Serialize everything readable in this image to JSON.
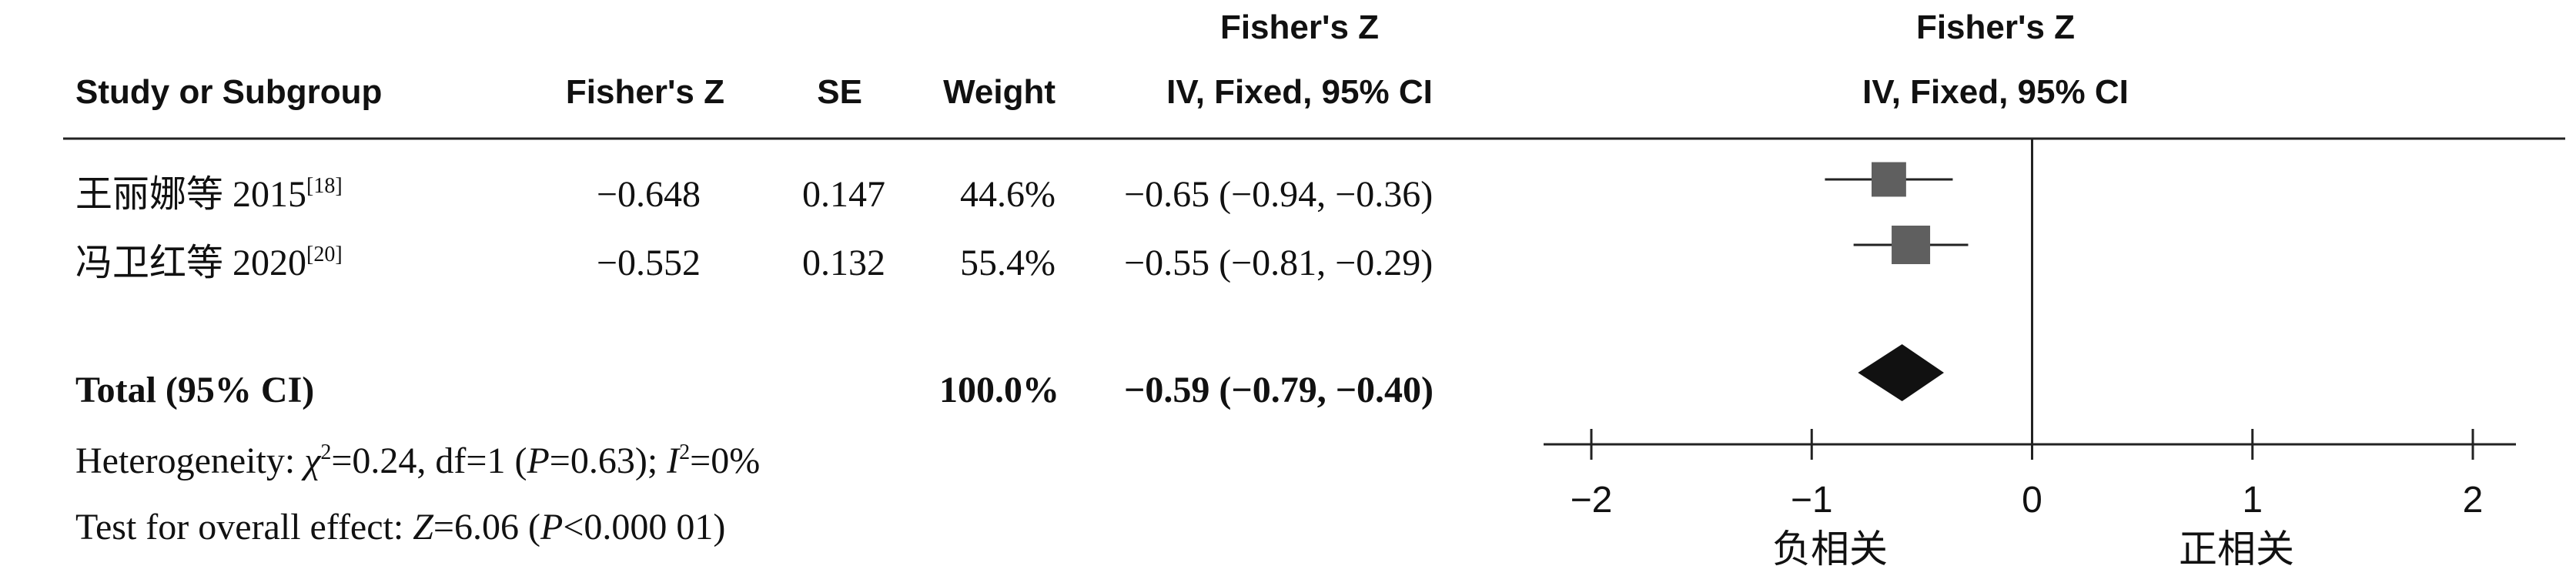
{
  "header": {
    "study": "Study or Subgroup",
    "estimate": "Fisher's Z",
    "se": "SE",
    "weight": "Weight",
    "ci_title": "Fisher's Z",
    "ci_sub": "IV, Fixed, 95% CI",
    "plot_title": "Fisher's Z",
    "plot_sub": "IV, Fixed, 95% CI"
  },
  "heterogeneity": {
    "prefix": "Heterogeneity: ",
    "chi_symbol": "χ",
    "chi_exp": "2",
    "chi_value": "=0.24, df=1 (",
    "p_symbol": "P",
    "p_value": "=0.63); ",
    "i_symbol": "I",
    "i_exp": "2",
    "i_value": "=0%"
  },
  "overall": {
    "prefix": "Test for overall effect: ",
    "z_symbol": "Z",
    "z_value": "=6.06 (",
    "p_symbol": "P",
    "p_value": "<0.000 01)"
  },
  "side_labels": {
    "left": "负相关",
    "right": "正相关"
  },
  "chart_data": {
    "type": "forest",
    "xlim": [
      -2,
      2
    ],
    "x_ticks": [
      -2,
      -1,
      0,
      1,
      2
    ],
    "x_tick_labels": [
      "−2",
      "−1",
      "0",
      "1",
      "2"
    ],
    "null_line": 0,
    "studies": [
      {
        "name": "王丽娜等 2015",
        "ref": "[18]",
        "estimate_label": "−0.648",
        "se_label": "0.147",
        "weight_label": "44.6%",
        "ci_label": "−0.65 (−0.94, −0.36)",
        "estimate": -0.65,
        "lower": -0.94,
        "upper": -0.36,
        "weight": 44.6,
        "marker_color": "#5f5f5f"
      },
      {
        "name": "冯卫红等 2020",
        "ref": "[20]",
        "estimate_label": "−0.552",
        "se_label": "0.132",
        "weight_label": "55.4%",
        "ci_label": "−0.55 (−0.81, −0.29)",
        "estimate": -0.55,
        "lower": -0.81,
        "upper": -0.29,
        "weight": 55.4,
        "marker_color": "#5f5f5f"
      }
    ],
    "total": {
      "name": "Total (95% CI)",
      "weight_label": "100.0%",
      "ci_label": "−0.59 (−0.79, −0.40)",
      "estimate": -0.59,
      "lower": -0.79,
      "upper": -0.4,
      "color": "#111111"
    }
  }
}
